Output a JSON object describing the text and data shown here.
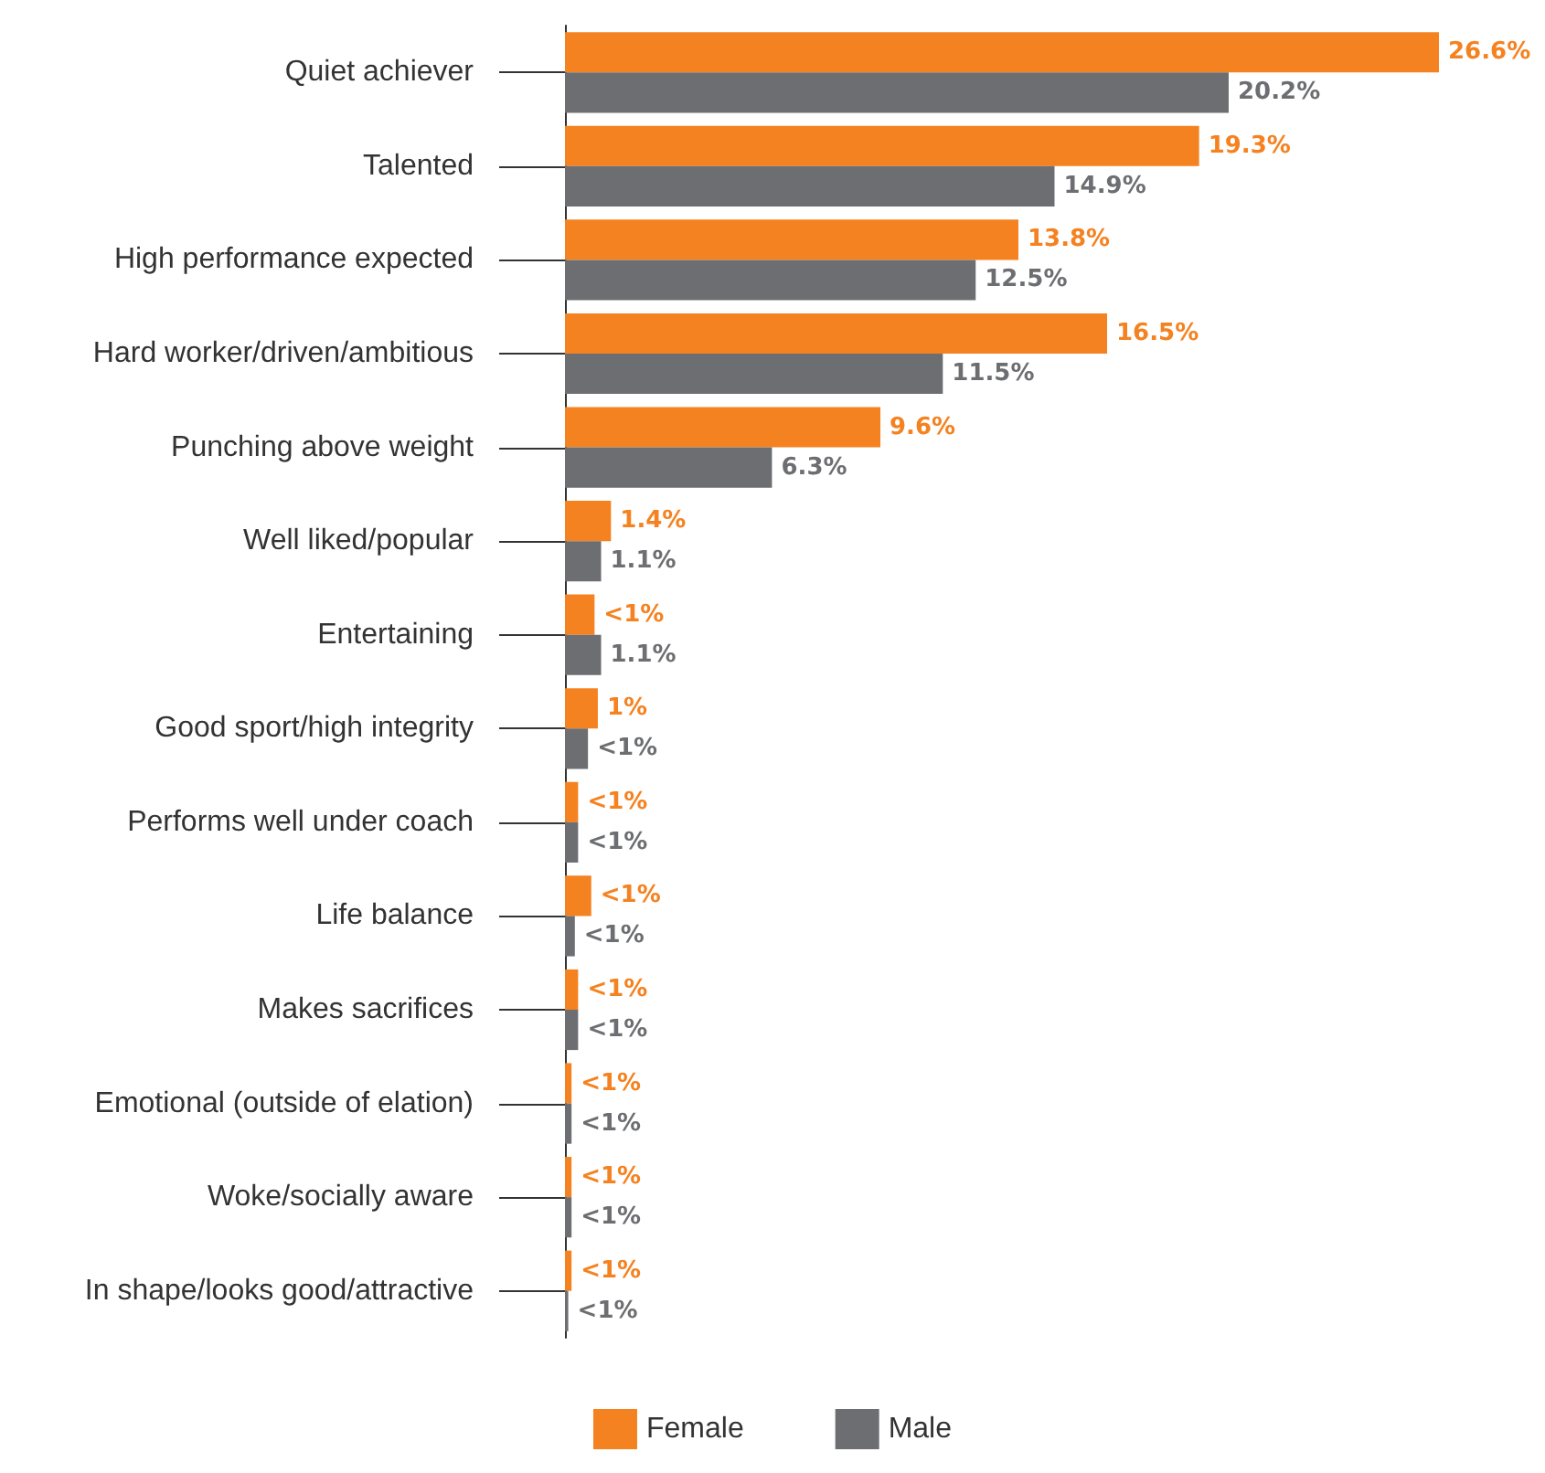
{
  "chart_data": {
    "type": "bar",
    "orientation": "horizontal",
    "categories": [
      "Quiet achiever",
      "Talented",
      "High performance expected",
      "Hard worker/driven/ambitious",
      "Punching above weight",
      "Well liked/popular",
      "Entertaining",
      "Good sport/high integrity",
      "Performs well under coach",
      "Life balance",
      "Makes sacrifices",
      "Emotional (outside of elation)",
      "Woke/socially aware",
      "In shape/looks good/attractive"
    ],
    "series": [
      {
        "name": "Female",
        "color": "#f58220",
        "values": [
          26.6,
          19.3,
          13.8,
          16.5,
          9.6,
          1.4,
          0.9,
          1,
          0.4,
          0.8,
          0.4,
          0.2,
          0.2,
          0.2
        ],
        "value_labels": [
          "26.6%",
          "19.3%",
          "13.8%",
          "16.5%",
          "9.6%",
          "1.4%",
          "<1%",
          "1%",
          "<1%",
          "<1%",
          "<1%",
          "<1%",
          "<1%",
          "<1%"
        ]
      },
      {
        "name": "Male",
        "color": "#6d6e71",
        "values": [
          20.2,
          14.9,
          12.5,
          11.5,
          6.3,
          1.1,
          1.1,
          0.7,
          0.4,
          0.3,
          0.4,
          0.2,
          0.2,
          0.1
        ],
        "value_labels": [
          "20.2%",
          "14.9%",
          "12.5%",
          "11.5%",
          "6.3%",
          "1.1%",
          "1.1%",
          "<1%",
          "<1%",
          "<1%",
          "<1%",
          "<1%",
          "<1%",
          "<1%"
        ]
      }
    ],
    "legend": "bottom",
    "tick_labels": "y"
  }
}
